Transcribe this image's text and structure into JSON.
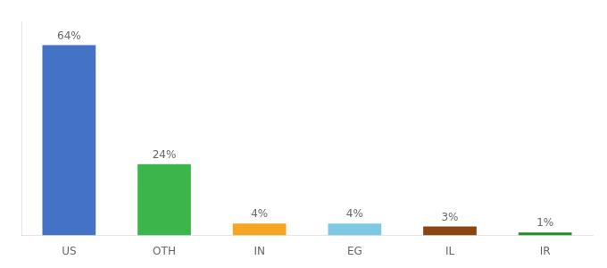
{
  "chart_data": {
    "type": "bar",
    "categories": [
      "US",
      "OTH",
      "IN",
      "EG",
      "IL",
      "IR"
    ],
    "values": [
      64,
      24,
      4,
      4,
      3,
      1
    ],
    "value_labels": [
      "64%",
      "24%",
      "4%",
      "4%",
      "3%",
      "1%"
    ],
    "colors": [
      "#4472C4",
      "#3CB54A",
      "#F5A623",
      "#7EC8E3",
      "#8B4513",
      "#228B22"
    ],
    "ylim": [
      0,
      72
    ],
    "grid": false,
    "data_labels": true,
    "tick_labels": "x"
  }
}
